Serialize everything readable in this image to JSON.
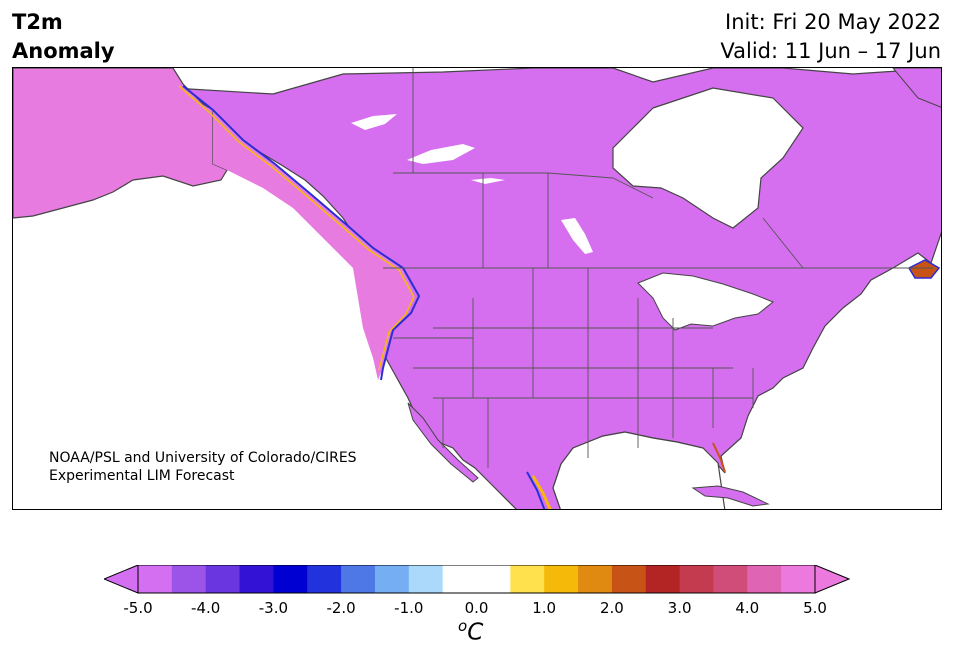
{
  "title": {
    "left_line1": "T2m",
    "left_line2": "Anomaly",
    "init": "Init: Fri 20 May 2022",
    "valid": "Valid: 11 Jun – 17 Jun"
  },
  "credit": {
    "line1": "NOAA/PSL and University of Colorado/CIRES",
    "line2": "Experimental LIM Forecast"
  },
  "colorbar": {
    "unit_base": "C",
    "unit_sup": "o",
    "ticks": [
      "-5.0",
      "-4.0",
      "-3.0",
      "-2.0",
      "-1.0",
      "0.0",
      "1.0",
      "2.0",
      "3.0",
      "4.0",
      "5.0"
    ],
    "colors": [
      "#d36ff0",
      "#9b53e8",
      "#6a36df",
      "#3311d5",
      "#0000d2",
      "#2233dd",
      "#4d78e6",
      "#75aef2",
      "#aad9fc",
      "#ffffff",
      "#ffffff",
      "#ffe14d",
      "#f5b90a",
      "#e08a12",
      "#c85316",
      "#b32424",
      "#c43a4e",
      "#d04d7a",
      "#df64b4",
      "#ec79dd"
    ]
  },
  "map": {
    "region": "North America",
    "land_color": "#d56ff0",
    "alaska_color": "#e87be0",
    "water_color": "#ffffff",
    "border_color": "#444444"
  }
}
